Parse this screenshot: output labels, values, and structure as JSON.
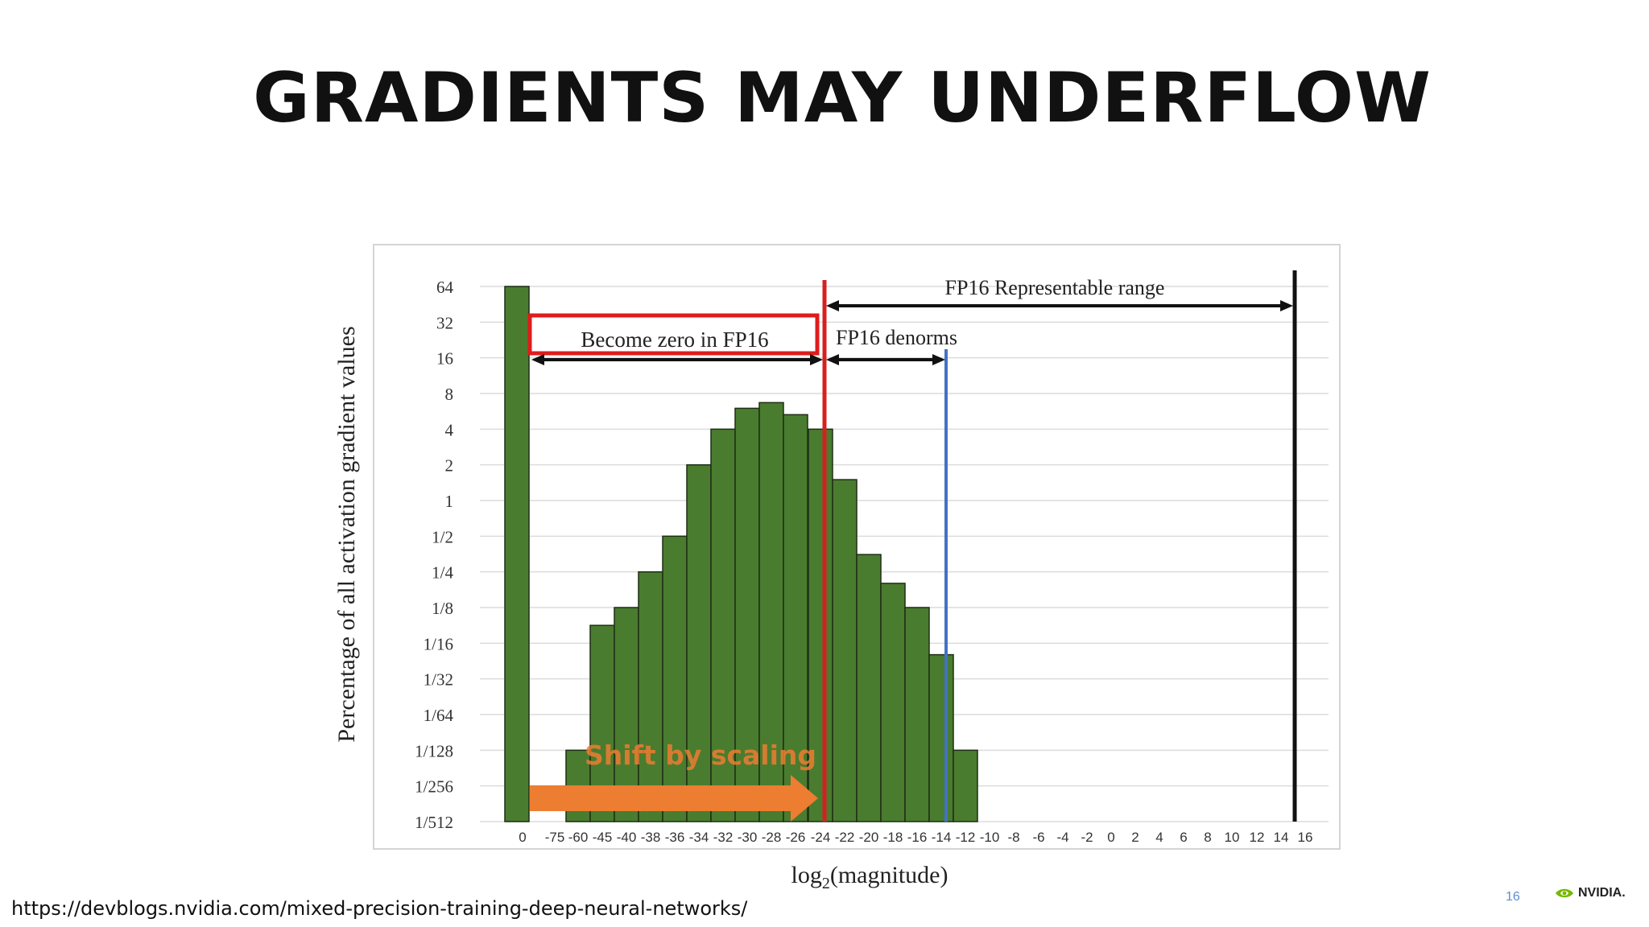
{
  "slide": {
    "title": "GRADIENTS MAY UNDERFLOW",
    "source_url": "https://devblogs.nvidia.com/mixed-precision-training-deep-neural-networks/",
    "page_number": "16",
    "brand": "NVIDIA."
  },
  "chart_data": {
    "type": "bar",
    "title": "",
    "xlabel": "log2(magnitude)",
    "ylabel": "Percentage of all activation gradient values",
    "y_scale": "log2",
    "y_ticks": [
      "1/512",
      "1/256",
      "1/128",
      "1/64",
      "1/32",
      "1/16",
      "1/8",
      "1/4",
      "1/2",
      "1",
      "2",
      "4",
      "8",
      "16",
      "32",
      "64"
    ],
    "ylim": [
      0.001953125,
      64
    ],
    "categories": [
      "0",
      "-75",
      "-60",
      "-45",
      "-40",
      "-38",
      "-36",
      "-34",
      "-32",
      "-30",
      "-28",
      "-26",
      "-24",
      "-22",
      "-20",
      "-18",
      "-16",
      "-14",
      "-12",
      "-10",
      "-8",
      "-6",
      "-4",
      "-2",
      "0",
      "2",
      "4",
      "6",
      "8",
      "10",
      "12",
      "14",
      "16"
    ],
    "series": [
      {
        "values": [
          64,
          null,
          0.0078125,
          0.0883883,
          0.125,
          0.25,
          0.5,
          2,
          4,
          6.0,
          6.7,
          5.3,
          4,
          1.5,
          0.35,
          0.2,
          0.125,
          0.05,
          0.0078125,
          null,
          null,
          null,
          null,
          null,
          null,
          null,
          null,
          null,
          null,
          null,
          null,
          null,
          null
        ]
      }
    ],
    "bar_color": "#4a7c2f",
    "annotations": {
      "zero_box": "Become zero in FP16",
      "denorms": "FP16 denorms",
      "range": "FP16 Representable range",
      "shift": "Shift by scaling",
      "fp16_min_normal": "-24",
      "fp16_min_denorm": "-14",
      "fp16_max": "16"
    },
    "colors": {
      "bar": "#4a7c2f",
      "zero_boundary": "#d62020",
      "denorm_boundary": "#4472c4",
      "max_boundary": "#111111",
      "shift_arrow": "#ed7d31"
    },
    "grid": true,
    "legend": "none"
  }
}
